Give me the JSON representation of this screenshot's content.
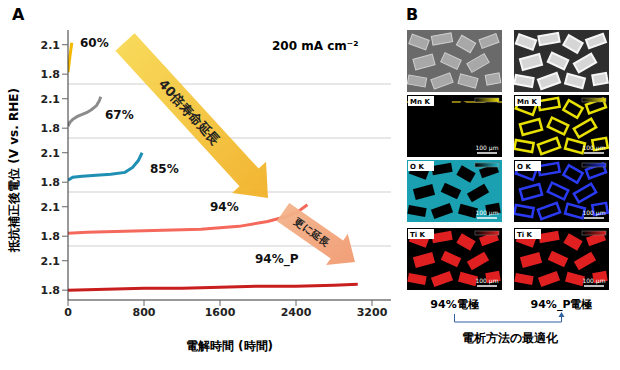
{
  "chart_data": [
    {
      "type": "line",
      "x": [
        0,
        10,
        20,
        30,
        40
      ],
      "series": [
        {
          "name": "60%",
          "color": "#f5b800",
          "values": [
            1.82,
            1.9,
            1.98,
            2.05,
            2.12
          ]
        }
      ],
      "xlim": [
        0,
        3400
      ],
      "xticks": [
        0,
        800,
        1600,
        2400,
        3200
      ],
      "ylim": [
        1.7,
        2.25
      ],
      "yticks": [
        1.8,
        2.1
      ],
      "tick_labels": "y"
    },
    {
      "type": "line",
      "x": [
        0,
        20,
        50,
        100,
        150,
        200,
        250,
        300,
        330,
        345
      ],
      "series": [
        {
          "name": "67%",
          "color": "#8c8c8c",
          "values": [
            1.82,
            1.86,
            1.89,
            1.92,
            1.94,
            1.96,
            1.99,
            2.03,
            2.08,
            2.12
          ]
        }
      ],
      "xlim": [
        0,
        3400
      ],
      "xticks": [
        0,
        800,
        1600,
        2400,
        3200
      ],
      "ylim": [
        1.7,
        2.25
      ],
      "yticks": [
        1.8,
        2.1
      ],
      "tick_labels": "y"
    },
    {
      "type": "line",
      "x": [
        0,
        50,
        150,
        300,
        450,
        600,
        680,
        740,
        780
      ],
      "series": [
        {
          "name": "85%",
          "color": "#1f8fb4",
          "values": [
            1.82,
            1.85,
            1.86,
            1.87,
            1.88,
            1.9,
            1.95,
            2.02,
            2.1
          ]
        }
      ],
      "xlim": [
        0,
        3400
      ],
      "xticks": [
        0,
        800,
        1600,
        2400,
        3200
      ],
      "ylim": [
        1.7,
        2.25
      ],
      "yticks": [
        1.8,
        2.1
      ],
      "tick_labels": "y"
    },
    {
      "type": "line",
      "x": [
        0,
        200,
        600,
        1000,
        1400,
        1800,
        2100,
        2300,
        2420,
        2520
      ],
      "series": [
        {
          "name": "94%",
          "color": "#f4695c",
          "values": [
            1.83,
            1.84,
            1.85,
            1.86,
            1.87,
            1.9,
            1.95,
            2.0,
            2.05,
            2.12
          ]
        }
      ],
      "xlim": [
        0,
        3400
      ],
      "xticks": [
        0,
        800,
        1600,
        2400,
        3200
      ],
      "ylim": [
        1.7,
        2.25
      ],
      "yticks": [
        1.8,
        2.1
      ],
      "tick_labels": "y"
    },
    {
      "type": "line",
      "x": [
        0,
        400,
        800,
        1200,
        1600,
        2000,
        2400,
        2800,
        3050
      ],
      "series": [
        {
          "name": "94%_P",
          "color": "#c81e1e",
          "values": [
            1.8,
            1.81,
            1.82,
            1.82,
            1.83,
            1.84,
            1.84,
            1.85,
            1.86
          ]
        }
      ],
      "xlim": [
        0,
        3400
      ],
      "xticks": [
        0,
        800,
        1600,
        2400,
        3200
      ],
      "ylim": [
        1.7,
        2.25
      ],
      "yticks": [
        1.8,
        2.1
      ],
      "xlabel": "電解時間 (時間)"
    }
  ],
  "panel_a": {
    "label": "A",
    "ylabel": "抵抗補正後電位 (V vs. RHE)",
    "annotation": "200 mA cm⁻²",
    "arrows": [
      "40倍寿命延長",
      "更に延長"
    ]
  },
  "panel_b": {
    "label": "B",
    "columns": [
      {
        "caption": "94%電極",
        "maps": [
          "Mn K",
          "O K",
          "Ti K"
        ]
      },
      {
        "caption": "94%_P電極",
        "maps": [
          "Mn K",
          "O K",
          "Ti K"
        ]
      }
    ],
    "scale_bar": "100 μm",
    "footer": "電析方法の最適化"
  }
}
